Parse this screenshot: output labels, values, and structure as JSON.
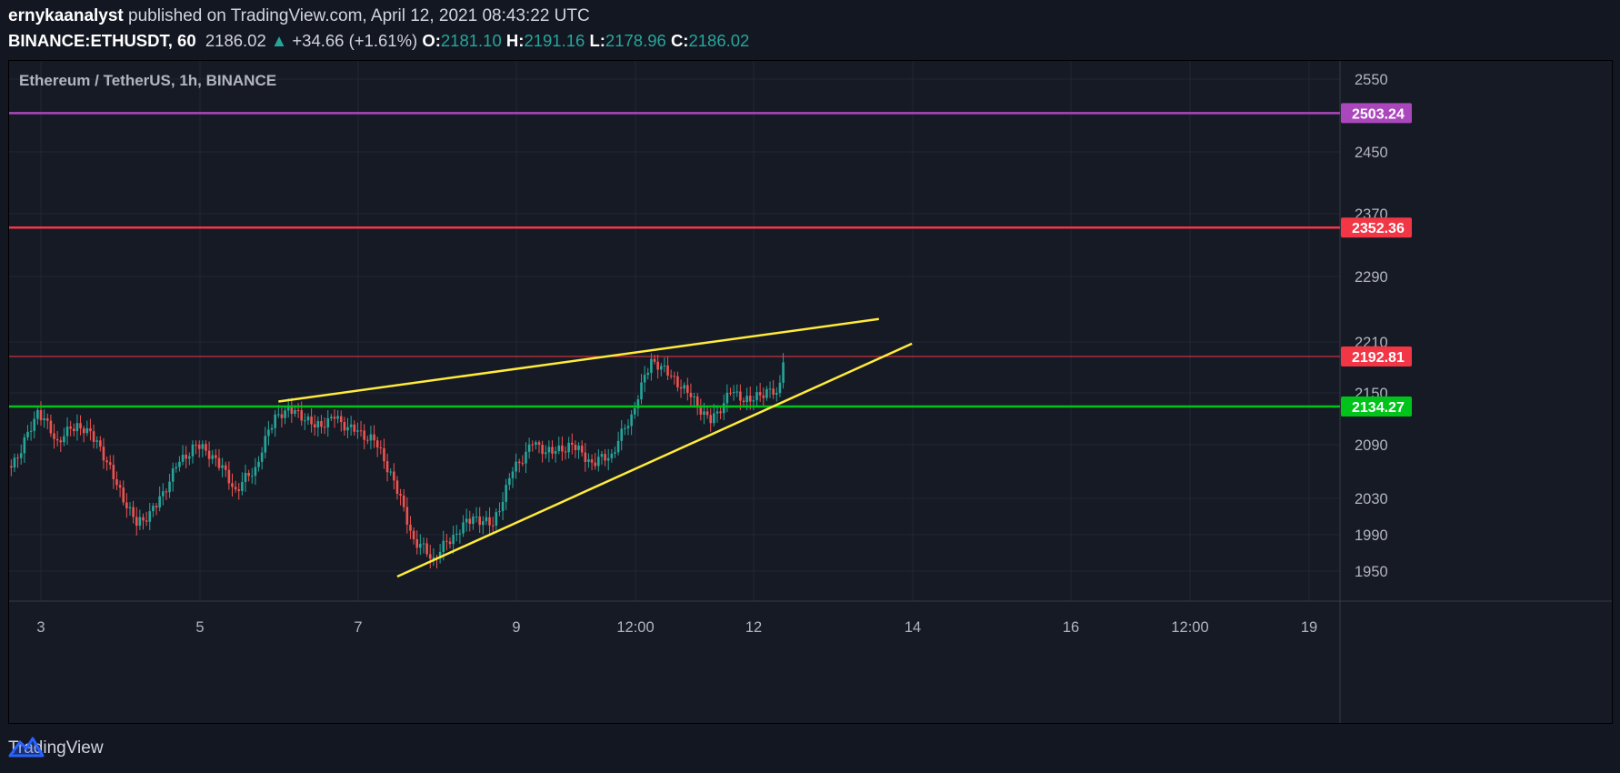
{
  "header": {
    "author": "ernykaanalyst",
    "published_text": "published on TradingView.com, April 12, 2021 08:43:22 UTC",
    "symbol": "BINANCE:ETHUSDT, 60",
    "last": "2186.02",
    "change_arrow": "▲",
    "change": "+34.66 (+1.61%)",
    "o_label": "O:",
    "o": "2181.10",
    "h_label": "H:",
    "h": "2191.16",
    "l_label": "L:",
    "l": "2178.96",
    "c_label": "C:",
    "c": "2186.02"
  },
  "footer": {
    "brand": "TradingView",
    "logo_icon": "tradingview-logo-icon"
  },
  "colors": {
    "up": "#26a69a",
    "down": "#ef5350",
    "bg": "#161a25",
    "purple": "#ab47bc",
    "red": "#f23645",
    "green": "#00c41a",
    "yellow": "#ffeb3b"
  },
  "chart_data": {
    "type": "candlestick",
    "title": "Ethereum / TetherUS, 1h, BINANCE",
    "x_ticks": [
      "3",
      "5",
      "7",
      "9",
      "12:00",
      "12",
      "14",
      "16",
      "12:00",
      "19"
    ],
    "y_ticks": [
      2550,
      2450,
      2370,
      2290,
      2210,
      2150,
      2090,
      2030,
      1990,
      1950
    ],
    "ylim": [
      1920,
      2580
    ],
    "grid": true,
    "horizontal_levels": [
      {
        "value": 2503.24,
        "label": "2503.24",
        "color": "#ab47bc"
      },
      {
        "value": 2352.36,
        "label": "2352.36",
        "color": "#f23645"
      },
      {
        "value": 2192.81,
        "label": "2192.81",
        "color": "#f23645"
      },
      {
        "value": 2134.27,
        "label": "2134.27",
        "color": "#00c41a"
      }
    ],
    "trendlines": [
      {
        "name": "upper",
        "from": [
          "Apr 6 00:00",
          2140
        ],
        "to": [
          "Apr 13 14:00",
          2238
        ],
        "color": "#ffeb3b"
      },
      {
        "name": "lower",
        "from": [
          "Apr 7 12:00",
          1944
        ],
        "to": [
          "Apr 14 00:00",
          2208
        ],
        "color": "#ffeb3b"
      }
    ],
    "candles_approx": [
      {
        "t": "Apr 2 12:00",
        "o": 2060,
        "h": 2080,
        "l": 2020,
        "c": 2075
      },
      {
        "t": "Apr 2 18:00",
        "o": 2075,
        "h": 2150,
        "l": 2065,
        "c": 2130
      },
      {
        "t": "Apr 3 00:00",
        "o": 2130,
        "h": 2145,
        "l": 2080,
        "c": 2095
      },
      {
        "t": "Apr 3 06:00",
        "o": 2095,
        "h": 2125,
        "l": 2080,
        "c": 2115
      },
      {
        "t": "Apr 3 12:00",
        "o": 2115,
        "h": 2125,
        "l": 2085,
        "c": 2095
      },
      {
        "t": "Apr 3 18:00",
        "o": 2095,
        "h": 2100,
        "l": 2030,
        "c": 2045
      },
      {
        "t": "Apr 4 00:00",
        "o": 2045,
        "h": 2050,
        "l": 1985,
        "c": 2000
      },
      {
        "t": "Apr 4 06:00",
        "o": 2000,
        "h": 2025,
        "l": 1995,
        "c": 2020
      },
      {
        "t": "Apr 4 12:00",
        "o": 2020,
        "h": 2070,
        "l": 2015,
        "c": 2065
      },
      {
        "t": "Apr 4 18:00",
        "o": 2065,
        "h": 2095,
        "l": 2060,
        "c": 2090
      },
      {
        "t": "Apr 5 00:00",
        "o": 2090,
        "h": 2095,
        "l": 2065,
        "c": 2075
      },
      {
        "t": "Apr 5 06:00",
        "o": 2075,
        "h": 2085,
        "l": 2030,
        "c": 2040
      },
      {
        "t": "Apr 5 12:00",
        "o": 2040,
        "h": 2075,
        "l": 2010,
        "c": 2065
      },
      {
        "t": "Apr 5 18:00",
        "o": 2065,
        "h": 2130,
        "l": 2060,
        "c": 2125
      },
      {
        "t": "Apr 6 00:00",
        "o": 2125,
        "h": 2145,
        "l": 2110,
        "c": 2130
      },
      {
        "t": "Apr 6 06:00",
        "o": 2130,
        "h": 2140,
        "l": 2095,
        "c": 2110
      },
      {
        "t": "Apr 6 12:00",
        "o": 2110,
        "h": 2135,
        "l": 2065,
        "c": 2120
      },
      {
        "t": "Apr 6 18:00",
        "o": 2120,
        "h": 2130,
        "l": 2095,
        "c": 2105
      },
      {
        "t": "Apr 7 00:00",
        "o": 2105,
        "h": 2125,
        "l": 2085,
        "c": 2095
      },
      {
        "t": "Apr 7 06:00",
        "o": 2095,
        "h": 2100,
        "l": 2040,
        "c": 2050
      },
      {
        "t": "Apr 7 12:00",
        "o": 2050,
        "h": 2055,
        "l": 1955,
        "c": 1985
      },
      {
        "t": "Apr 7 18:00",
        "o": 1985,
        "h": 1995,
        "l": 1940,
        "c": 1965
      },
      {
        "t": "Apr 8 00:00",
        "o": 1965,
        "h": 2000,
        "l": 1945,
        "c": 1990
      },
      {
        "t": "Apr 8 06:00",
        "o": 1990,
        "h": 2020,
        "l": 1980,
        "c": 2010
      },
      {
        "t": "Apr 8 12:00",
        "o": 2010,
        "h": 2025,
        "l": 1985,
        "c": 2000
      },
      {
        "t": "Apr 8 18:00",
        "o": 2000,
        "h": 2065,
        "l": 1995,
        "c": 2060
      },
      {
        "t": "Apr 9 00:00",
        "o": 2060,
        "h": 2100,
        "l": 2050,
        "c": 2090
      },
      {
        "t": "Apr 9 06:00",
        "o": 2090,
        "h": 2095,
        "l": 2065,
        "c": 2080
      },
      {
        "t": "Apr 9 12:00",
        "o": 2080,
        "h": 2105,
        "l": 2070,
        "c": 2090
      },
      {
        "t": "Apr 9 18:00",
        "o": 2090,
        "h": 2095,
        "l": 2055,
        "c": 2070
      },
      {
        "t": "Apr 10 00:00",
        "o": 2070,
        "h": 2085,
        "l": 2060,
        "c": 2080
      },
      {
        "t": "Apr 10 06:00",
        "o": 2080,
        "h": 2130,
        "l": 2075,
        "c": 2125
      },
      {
        "t": "Apr 10 12:00",
        "o": 2125,
        "h": 2200,
        "l": 2120,
        "c": 2190
      },
      {
        "t": "Apr 10 18:00",
        "o": 2190,
        "h": 2195,
        "l": 2165,
        "c": 2170
      },
      {
        "t": "Apr 11 00:00",
        "o": 2170,
        "h": 2175,
        "l": 2130,
        "c": 2145
      },
      {
        "t": "Apr 11 06:00",
        "o": 2145,
        "h": 2150,
        "l": 2085,
        "c": 2115
      },
      {
        "t": "Apr 11 12:00",
        "o": 2115,
        "h": 2160,
        "l": 2110,
        "c": 2150
      },
      {
        "t": "Apr 11 18:00",
        "o": 2150,
        "h": 2160,
        "l": 2125,
        "c": 2140
      },
      {
        "t": "Apr 12 00:00",
        "o": 2140,
        "h": 2165,
        "l": 2130,
        "c": 2155
      },
      {
        "t": "Apr 12 06:00",
        "o": 2155,
        "h": 2165,
        "l": 2140,
        "c": 2150
      },
      {
        "t": "Apr 12 08:00",
        "o": 2150,
        "h": 2210,
        "l": 2145,
        "c": 2186
      }
    ]
  }
}
